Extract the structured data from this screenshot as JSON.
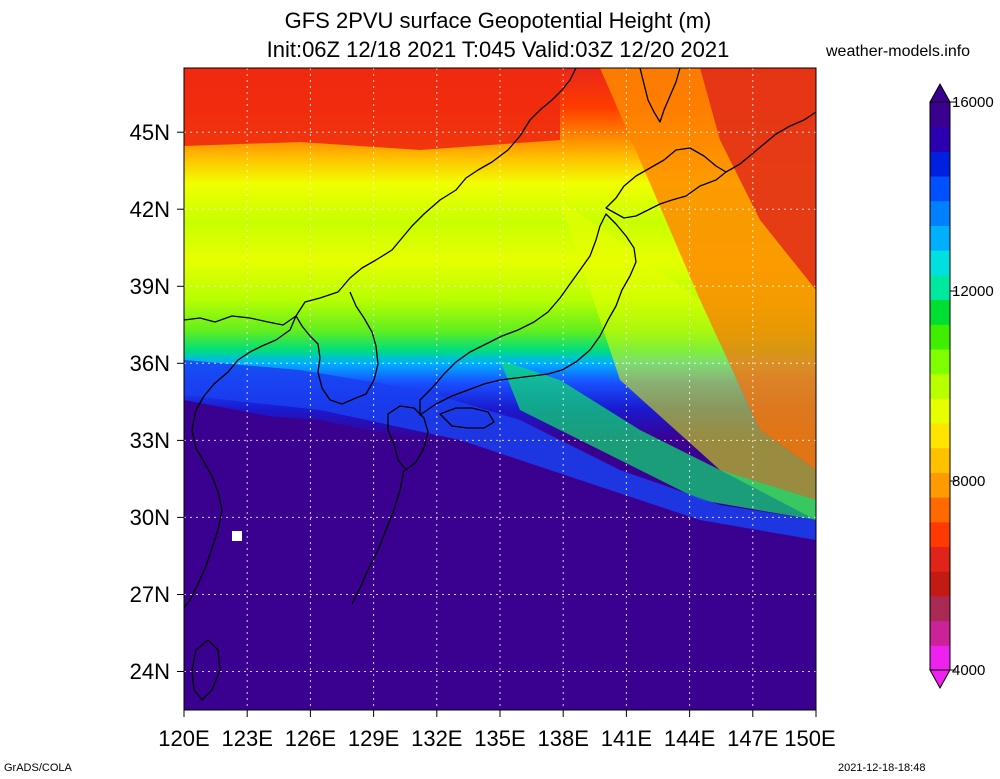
{
  "header": {
    "title_line1": "GFS 2PVU surface Geopotential Height (m)",
    "title_line2": "Init:06Z 12/18 2021 T:045 Valid:03Z 12/20 2021",
    "credit": "weather-models.info"
  },
  "footer": {
    "left": "GrADS/COLA",
    "right": "2021-12-18-18:48"
  },
  "map": {
    "lon_labels": [
      "120E",
      "123E",
      "126E",
      "129E",
      "132E",
      "135E",
      "138E",
      "141E",
      "144E",
      "147E",
      "150E"
    ],
    "lat_labels": [
      "24N",
      "27N",
      "30N",
      "33N",
      "36N",
      "39N",
      "42N",
      "45N"
    ],
    "lon_range": [
      120,
      150
    ],
    "lat_range": [
      22.5,
      47.5
    ],
    "grid": true
  },
  "colorbar": {
    "labels": [
      "4000",
      "8000",
      "12000",
      "16000"
    ],
    "colors": [
      "#ee22ee",
      "#cc2299",
      "#a82a55",
      "#c41a14",
      "#e0241a",
      "#ff3a00",
      "#ff6a00",
      "#ff9a00",
      "#ffc000",
      "#ffe400",
      "#e6ff00",
      "#b8ff00",
      "#80ff00",
      "#40ee00",
      "#00dd33",
      "#00e8a0",
      "#00e0e0",
      "#00b0ff",
      "#0080ff",
      "#0050ff",
      "#0020e0",
      "#2a00b0",
      "#3a0090"
    ]
  }
}
